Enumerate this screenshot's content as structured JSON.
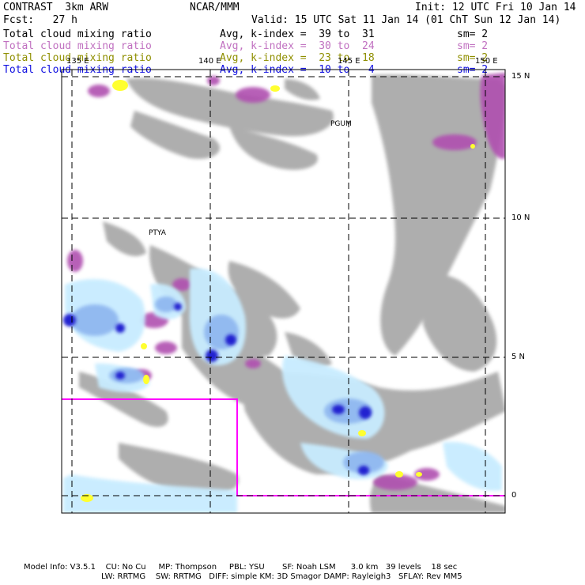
{
  "header": {
    "model": "CONTRAST  3km ARW",
    "center": "NCAR/MMM",
    "init": "Init: 12 UTC Fri 10 Jan 14",
    "fcst": "Fcst:   27 h",
    "valid": "Valid: 15 UTC Sat 11 Jan 14 (01 ChT Sun 12 Jan 14)"
  },
  "fields": [
    {
      "label": "Total cloud mixing ratio",
      "range": "Avg, k-index =  39 to  31",
      "sm": "sm= 2",
      "color": "#000000"
    },
    {
      "label": "Total cloud mixing ratio",
      "range": "Avg, k-index =  30 to  24",
      "sm": "sm= 2",
      "color": "#c070c0"
    },
    {
      "label": "Total cloud mixing ratio",
      "range": "Avg, k-index =  23 to  18",
      "sm": "sm= 2",
      "color": "#8f8f00"
    },
    {
      "label": "Total cloud mixing ratio",
      "range": "Avg, k-index =  10 to   4",
      "sm": "sm= 2",
      "color": "#1010e0"
    }
  ],
  "axes": {
    "lon_ticks": [
      "135 E",
      "140 E",
      "145 E",
      "150 E"
    ],
    "lat_ticks": [
      "15 N",
      "10 N",
      "5 N",
      "0"
    ]
  },
  "stations": [
    "PGUM",
    "PTYA"
  ],
  "footer": {
    "line1": "Model Info: V3.5.1    CU: No Cu     MP: Thompson     PBL: YSU       SF: Noah LSM      3.0 km   39 levels    18 sec",
    "line2": "LW: RRTMG    SW: RRTMG   DIFF: simple KM: 3D Smagor DAMP: Rayleigh3   SFLAY: Rev MM5"
  },
  "colors": {
    "cloud_gray": "#a0a0a0",
    "cloud_violet": "#b050b0",
    "cloud_yellow": "#ffff30",
    "blue_light": "#c8ecff",
    "blue_mid": "#90b8f0",
    "blue_dark": "#2020d0",
    "box": "#ff00ff"
  }
}
